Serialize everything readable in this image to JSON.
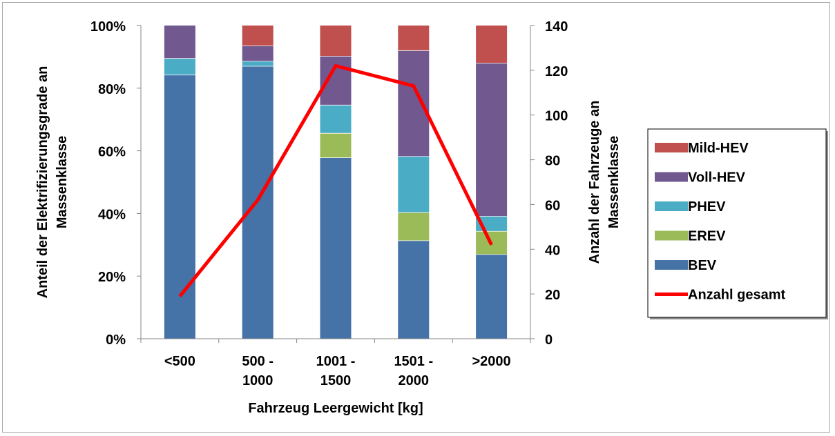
{
  "chart_data": {
    "type": "bar",
    "stacked": true,
    "percent_stacked": true,
    "categories": [
      "<500",
      "500 - 1000",
      "1001 - 1500",
      "1501 - 2000",
      ">2000"
    ],
    "category_label_lines": [
      [
        "<500"
      ],
      [
        "500 -",
        "1000"
      ],
      [
        "1001 -",
        "1500"
      ],
      [
        "1501 -",
        "2000"
      ],
      [
        ">2000"
      ]
    ],
    "series": [
      {
        "name": "BEV",
        "values": [
          84.2,
          87.0,
          57.8,
          31.3,
          26.9
        ],
        "color": "#4572a7"
      },
      {
        "name": "EREV",
        "values": [
          0,
          0,
          7.8,
          9.0,
          7.4
        ],
        "color": "#9bbb59"
      },
      {
        "name": "PHEV",
        "values": [
          5.3,
          1.6,
          9.0,
          17.9,
          4.8
        ],
        "color": "#4bacc6"
      },
      {
        "name": "Voll-HEV",
        "values": [
          10.5,
          4.9,
          15.6,
          33.8,
          48.9
        ],
        "color": "#71588f"
      },
      {
        "name": "Mild-HEV",
        "values": [
          0,
          6.5,
          9.8,
          8.0,
          12.0
        ],
        "color": "#c0504d"
      }
    ],
    "line_series": {
      "name": "Anzahl gesamt",
      "values": [
        19,
        62,
        122,
        113,
        42
      ],
      "color": "#ff0000",
      "axis": "secondary"
    },
    "legend_order": [
      "Mild-HEV",
      "Voll-HEV",
      "PHEV",
      "EREV",
      "BEV",
      "Anzahl gesamt"
    ],
    "xlabel": "Fahrzeug Leergewicht [kg]",
    "ylabel_lines": [
      "Anteil der Elektrifizierungsgrade an",
      "Massenklasse"
    ],
    "y2label_lines": [
      "Anzahl der Fahrzeuge an",
      "Massenklasse"
    ],
    "ylim": [
      0,
      100
    ],
    "y_ticks": [
      "0%",
      "20%",
      "40%",
      "60%",
      "80%",
      "100%"
    ],
    "y2lim": [
      0,
      140
    ],
    "y2_ticks": [
      "0",
      "20",
      "40",
      "60",
      "80",
      "100",
      "120",
      "140"
    ],
    "grid": false,
    "legend_position": "right"
  }
}
